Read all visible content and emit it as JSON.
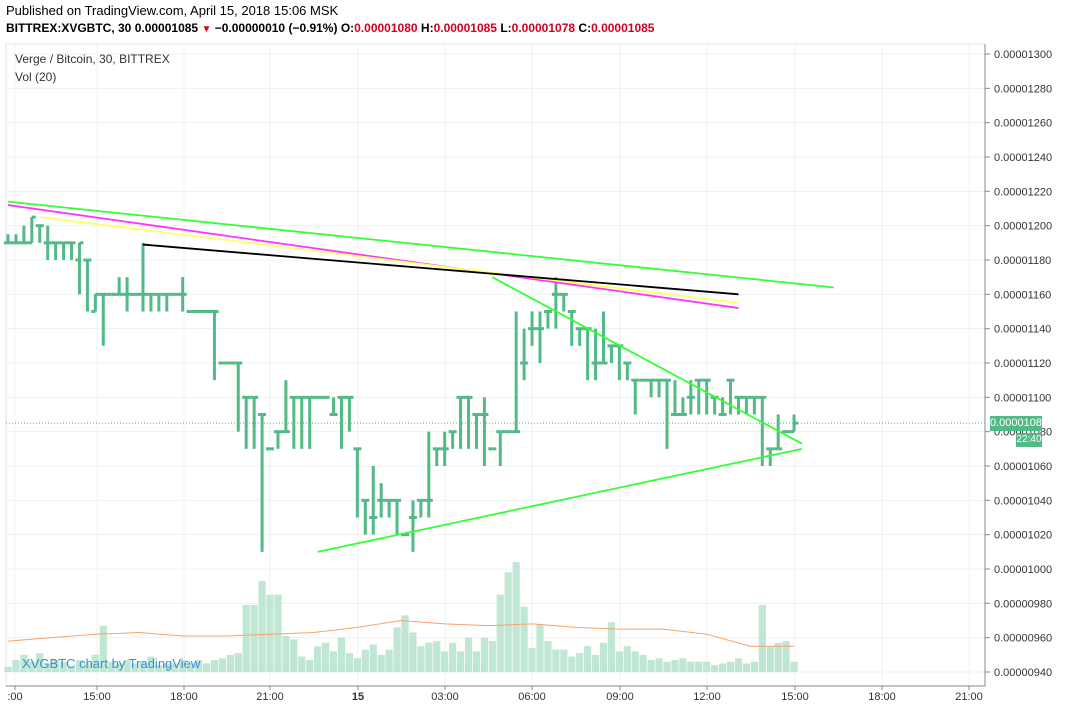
{
  "header": {
    "published": "Published on TradingView.com, April 15, 2018 15:06 MSK",
    "symbol": "BITTREX:XVGBTC, 30",
    "last": "0.00001085",
    "change": "−0.00000010 (−0.91%)",
    "o_label": "O:",
    "o": "0.00001080",
    "h_label": "H:",
    "h": "0.00001085",
    "l_label": "L:",
    "l": "0.00001078",
    "c_label": "C:",
    "c": "0.00001085"
  },
  "legend": {
    "title": "Verge / Bitcoin, 30, BITTREX",
    "vol": "Vol (20)"
  },
  "watermark": "XVGBTC chart by TradingView",
  "tags": {
    "price": "0.00001085",
    "time": "22:40"
  },
  "colors": {
    "up": "#53b987",
    "down": "#eb4d5c",
    "up_vol": "#bfe7d3",
    "down_vol": "#f7c2c6",
    "green_line": "#33ff33",
    "magenta": "#ff33ff",
    "yellow": "#ffff66",
    "black": "#000000",
    "ma": "#f5a46c"
  },
  "chart_data": {
    "type": "candlestick",
    "yticks": [
      "0.00001300",
      "0.00001280",
      "0.00001260",
      "0.00001240",
      "0.00001220",
      "0.00001200",
      "0.00001180",
      "0.00001160",
      "0.00001140",
      "0.00001120",
      "0.00001100",
      "0.00001080",
      "0.00001060",
      "0.00001040",
      "0.00001020",
      "0.00001000",
      "0.00000980",
      "0.00000960",
      "0.00000940"
    ],
    "xticks": [
      ":00",
      "15:00",
      "18:00",
      "21:00",
      "15",
      "03:00",
      "06:00",
      "09:00",
      "12:00",
      "15:00",
      "18:00",
      "21:00"
    ],
    "bars": [
      [
        1.19e-05,
        1.19e-05,
        1.195e-05,
        1.19e-05
      ],
      [
        1.19e-05,
        1.19e-05,
        1.195e-05,
        1.19e-05
      ],
      [
        1.19e-05,
        1.19e-05,
        1.2e-05,
        1.19e-05
      ],
      [
        1.19e-05,
        1.205e-05,
        1.205e-05,
        1.19e-05
      ],
      [
        1.2e-05,
        1.2e-05,
        1.2e-05,
        1.19e-05
      ],
      [
        1.19e-05,
        1.19e-05,
        1.2e-05,
        1.18e-05
      ],
      [
        1.19e-05,
        1.19e-05,
        1.19e-05,
        1.18e-05
      ],
      [
        1.19e-05,
        1.19e-05,
        1.19e-05,
        1.18e-05
      ],
      [
        1.19e-05,
        1.19e-05,
        1.19e-05,
        1.18e-05
      ],
      [
        1.18e-05,
        1.19e-05,
        1.19e-05,
        1.16e-05
      ],
      [
        1.18e-05,
        1.18e-05,
        1.18e-05,
        1.15e-05
      ],
      [
        1.15e-05,
        1.16e-05,
        1.16e-05,
        1.15e-05
      ],
      [
        1.16e-05,
        1.16e-05,
        1.16e-05,
        1.13e-05
      ],
      [
        1.16e-05,
        1.16e-05,
        1.16e-05,
        1.16e-05
      ],
      [
        1.16e-05,
        1.16e-05,
        1.17e-05,
        1.16e-05
      ],
      [
        1.16e-05,
        1.16e-05,
        1.17e-05,
        1.15e-05
      ],
      [
        1.16e-05,
        1.16e-05,
        1.16e-05,
        1.16e-05
      ],
      [
        1.16e-05,
        1.16e-05,
        1.19e-05,
        1.15e-05
      ],
      [
        1.16e-05,
        1.16e-05,
        1.16e-05,
        1.15e-05
      ],
      [
        1.16e-05,
        1.16e-05,
        1.16e-05,
        1.15e-05
      ],
      [
        1.16e-05,
        1.16e-05,
        1.16e-05,
        1.15e-05
      ],
      [
        1.16e-05,
        1.16e-05,
        1.16e-05,
        1.16e-05
      ],
      [
        1.16e-05,
        1.16e-05,
        1.17e-05,
        1.15e-05
      ],
      [
        1.15e-05,
        1.15e-05,
        1.15e-05,
        1.15e-05
      ],
      [
        1.15e-05,
        1.15e-05,
        1.15e-05,
        1.15e-05
      ],
      [
        1.15e-05,
        1.15e-05,
        1.15e-05,
        1.15e-05
      ],
      [
        1.15e-05,
        1.15e-05,
        1.15e-05,
        1.11e-05
      ],
      [
        1.12e-05,
        1.12e-05,
        1.12e-05,
        1.12e-05
      ],
      [
        1.12e-05,
        1.12e-05,
        1.12e-05,
        1.12e-05
      ],
      [
        1.12e-05,
        1.12e-05,
        1.12e-05,
        1.08e-05
      ],
      [
        1.1e-05,
        1.1e-05,
        1.1e-05,
        1.07e-05
      ],
      [
        1.1e-05,
        1.1e-05,
        1.1e-05,
        1.07e-05
      ],
      [
        1.09e-05,
        1.09e-05,
        1.09e-05,
        1.01e-05
      ],
      [
        1.07e-05,
        1.07e-05,
        1.07e-05,
        1.07e-05
      ],
      [
        1.08e-05,
        1.08e-05,
        1.08e-05,
        1.07e-05
      ],
      [
        1.08e-05,
        1.08e-05,
        1.11e-05,
        1.08e-05
      ],
      [
        1.1e-05,
        1.1e-05,
        1.1e-05,
        1.07e-05
      ],
      [
        1.1e-05,
        1.1e-05,
        1.1e-05,
        1.07e-05
      ],
      [
        1.1e-05,
        1.1e-05,
        1.1e-05,
        1.07e-05
      ],
      [
        1.1e-05,
        1.1e-05,
        1.1e-05,
        1.1e-05
      ],
      [
        1.1e-05,
        1.1e-05,
        1.1e-05,
        1.1e-05
      ],
      [
        1.09e-05,
        1.09e-05,
        1.1e-05,
        1.09e-05
      ],
      [
        1.1e-05,
        1.1e-05,
        1.1e-05,
        1.07e-05
      ],
      [
        1.1e-05,
        1.1e-05,
        1.1e-05,
        1.08e-05
      ],
      [
        1.07e-05,
        1.07e-05,
        1.07e-05,
        1.03e-05
      ],
      [
        1.04e-05,
        1.04e-05,
        1.04e-05,
        1.02e-05
      ],
      [
        1.03e-05,
        1.03e-05,
        1.06e-05,
        1.02e-05
      ],
      [
        1.04e-05,
        1.04e-05,
        1.05e-05,
        1.03e-05
      ],
      [
        1.04e-05,
        1.04e-05,
        1.04e-05,
        1.03e-05
      ],
      [
        1.04e-05,
        1.04e-05,
        1.04e-05,
        1.02e-05
      ],
      [
        1.02e-05,
        1.02e-05,
        1.02e-05,
        1.02e-05
      ],
      [
        1.03e-05,
        1.03e-05,
        1.04e-05,
        1.01e-05
      ],
      [
        1.04e-05,
        1.04e-05,
        1.04e-05,
        1.03e-05
      ],
      [
        1.04e-05,
        1.04e-05,
        1.08e-05,
        1.03e-05
      ],
      [
        1.07e-05,
        1.07e-05,
        1.07e-05,
        1.06e-05
      ],
      [
        1.07e-05,
        1.07e-05,
        1.08e-05,
        1.06e-05
      ],
      [
        1.08e-05,
        1.08e-05,
        1.08e-05,
        1.07e-05
      ],
      [
        1.1e-05,
        1.1e-05,
        1.1e-05,
        1.07e-05
      ],
      [
        1.1e-05,
        1.1e-05,
        1.1e-05,
        1.07e-05
      ],
      [
        1.09e-05,
        1.09e-05,
        1.09e-05,
        1.07e-05
      ],
      [
        1.09e-05,
        1.09e-05,
        1.1e-05,
        1.06e-05
      ],
      [
        1.07e-05,
        1.07e-05,
        1.07e-05,
        1.07e-05
      ],
      [
        1.08e-05,
        1.08e-05,
        1.08e-05,
        1.06e-05
      ],
      [
        1.08e-05,
        1.08e-05,
        1.08e-05,
        1.08e-05
      ],
      [
        1.08e-05,
        1.08e-05,
        1.15e-05,
        1.08e-05
      ],
      [
        1.12e-05,
        1.12e-05,
        1.14e-05,
        1.11e-05
      ],
      [
        1.14e-05,
        1.14e-05,
        1.15e-05,
        1.13e-05
      ],
      [
        1.14e-05,
        1.14e-05,
        1.15e-05,
        1.12e-05
      ],
      [
        1.15e-05,
        1.15e-05,
        1.15e-05,
        1.14e-05
      ],
      [
        1.16e-05,
        1.16e-05,
        1.17e-05,
        1.14e-05
      ],
      [
        1.16e-05,
        1.16e-05,
        1.16e-05,
        1.15e-05
      ],
      [
        1.15e-05,
        1.15e-05,
        1.15e-05,
        1.13e-05
      ],
      [
        1.14e-05,
        1.14e-05,
        1.14e-05,
        1.13e-05
      ],
      [
        1.14e-05,
        1.14e-05,
        1.14e-05,
        1.11e-05
      ],
      [
        1.12e-05,
        1.12e-05,
        1.14e-05,
        1.11e-05
      ],
      [
        1.12e-05,
        1.12e-05,
        1.15e-05,
        1.12e-05
      ],
      [
        1.13e-05,
        1.13e-05,
        1.13e-05,
        1.12e-05
      ],
      [
        1.13e-05,
        1.13e-05,
        1.13e-05,
        1.11e-05
      ],
      [
        1.12e-05,
        1.12e-05,
        1.12e-05,
        1.11e-05
      ],
      [
        1.11e-05,
        1.11e-05,
        1.11e-05,
        1.09e-05
      ],
      [
        1.11e-05,
        1.11e-05,
        1.11e-05,
        1.11e-05
      ],
      [
        1.11e-05,
        1.11e-05,
        1.11e-05,
        1.1e-05
      ],
      [
        1.11e-05,
        1.11e-05,
        1.11e-05,
        1.1e-05
      ],
      [
        1.11e-05,
        1.11e-05,
        1.11e-05,
        1.07e-05
      ],
      [
        1.09e-05,
        1.09e-05,
        1.11e-05,
        1.09e-05
      ],
      [
        1.09e-05,
        1.09e-05,
        1.1e-05,
        1.09e-05
      ],
      [
        1.1e-05,
        1.1e-05,
        1.11e-05,
        1.09e-05
      ],
      [
        1.11e-05,
        1.11e-05,
        1.11e-05,
        1.09e-05
      ],
      [
        1.11e-05,
        1.11e-05,
        1.11e-05,
        1.09e-05
      ],
      [
        1.1e-05,
        1.1e-05,
        1.1e-05,
        1.09e-05
      ],
      [
        1.09e-05,
        1.09e-05,
        1.1e-05,
        1.09e-05
      ],
      [
        1.11e-05,
        1.11e-05,
        1.11e-05,
        1.09e-05
      ],
      [
        1.1e-05,
        1.1e-05,
        1.1e-05,
        1.09e-05
      ],
      [
        1.1e-05,
        1.1e-05,
        1.1e-05,
        1.09e-05
      ],
      [
        1.1e-05,
        1.1e-05,
        1.1e-05,
        1.09e-05
      ],
      [
        1.1e-05,
        1.1e-05,
        1.1e-05,
        1.06e-05
      ],
      [
        1.07e-05,
        1.07e-05,
        1.07e-05,
        1.06e-05
      ],
      [
        1.07e-05,
        1.07e-05,
        1.09e-05,
        1.07e-05
      ],
      [
        1.08e-05,
        1.08e-05,
        1.08e-05,
        1.08e-05
      ],
      [
        1.08e-05,
        1.085e-05,
        1.09e-05,
        1.08e-05
      ]
    ],
    "volumes": [
      9.43e-06,
      9.47e-06,
      9.5e-06,
      9.46e-06,
      9.51e-06,
      9.45e-06,
      9.47e-06,
      9.46e-06,
      9.43e-06,
      9.47e-06,
      9.45e-06,
      9.5e-06,
      9.67e-06,
      9.46e-06,
      9.45e-06,
      9.47e-06,
      9.45e-06,
      9.46e-06,
      9.49e-06,
      9.44e-06,
      9.45e-06,
      9.45e-06,
      9.47e-06,
      9.45e-06,
      9.47e-06,
      9.45e-06,
      9.47e-06,
      9.48e-06,
      9.5e-06,
      9.51e-06,
      9.79e-06,
      9.79e-06,
      9.93e-06,
      9.85e-06,
      9.85e-06,
      9.61e-06,
      9.59e-06,
      9.49e-06,
      9.47e-06,
      9.55e-06,
      9.57e-06,
      9.52e-06,
      9.6e-06,
      9.51e-06,
      9.48e-06,
      9.53e-06,
      9.56e-06,
      9.5e-06,
      9.53e-06,
      9.66e-06,
      9.73e-06,
      9.63e-06,
      9.55e-06,
      9.57e-06,
      9.58e-06,
      9.52e-06,
      9.57e-06,
      9.52e-06,
      9.6e-06,
      9.52e-06,
      9.6e-06,
      9.58e-06,
      9.85e-06,
      9.98e-06,
      1.004e-05,
      9.78e-06,
      9.54e-06,
      9.68e-06,
      9.58e-06,
      9.53e-06,
      9.53e-06,
      9.49e-06,
      9.51e-06,
      9.55e-06,
      9.5e-06,
      9.57e-06,
      9.69e-06,
      9.52e-06,
      9.55e-06,
      9.52e-06,
      9.5e-06,
      9.47e-06,
      9.48e-06,
      9.46e-06,
      9.47e-06,
      9.48e-06,
      9.46e-06,
      9.46e-06,
      9.46e-06,
      9.44e-06,
      9.45e-06,
      9.46e-06,
      9.48e-06,
      9.45e-06,
      9.46e-06,
      9.79e-06,
      9.55e-06,
      9.57e-06,
      9.58e-06,
      9.46e-06
    ],
    "ma": [
      9.58e-06,
      9.6e-06,
      9.62e-06,
      9.63e-06,
      9.61e-06,
      9.61e-06,
      9.62e-06,
      9.63e-06,
      9.66e-06,
      9.7e-06,
      9.68e-06,
      9.67e-06,
      9.68e-06,
      9.66e-06,
      9.65e-06,
      9.65e-06,
      9.62e-06,
      9.55e-06,
      9.55e-06
    ],
    "lines": [
      {
        "name": "upper-green",
        "from": [
          0,
          1.214e-05
        ],
        "to": [
          104,
          1.164e-05
        ]
      },
      {
        "name": "magenta",
        "from": [
          0,
          1.212e-05
        ],
        "to": [
          92,
          1.152e-05
        ]
      },
      {
        "name": "yellow",
        "from": [
          4,
          1.205e-05
        ],
        "to": [
          92,
          1.155e-05
        ]
      },
      {
        "name": "black",
        "from": [
          17,
          1.189e-05
        ],
        "to": [
          92,
          1.16e-05
        ]
      },
      {
        "name": "tri-upper",
        "from": [
          61,
          1.17e-05
        ],
        "to": [
          100,
          1.073e-05
        ]
      },
      {
        "name": "tri-lower",
        "from": [
          39,
          1.01e-05
        ],
        "to": [
          100,
          1.07e-05
        ]
      }
    ]
  }
}
